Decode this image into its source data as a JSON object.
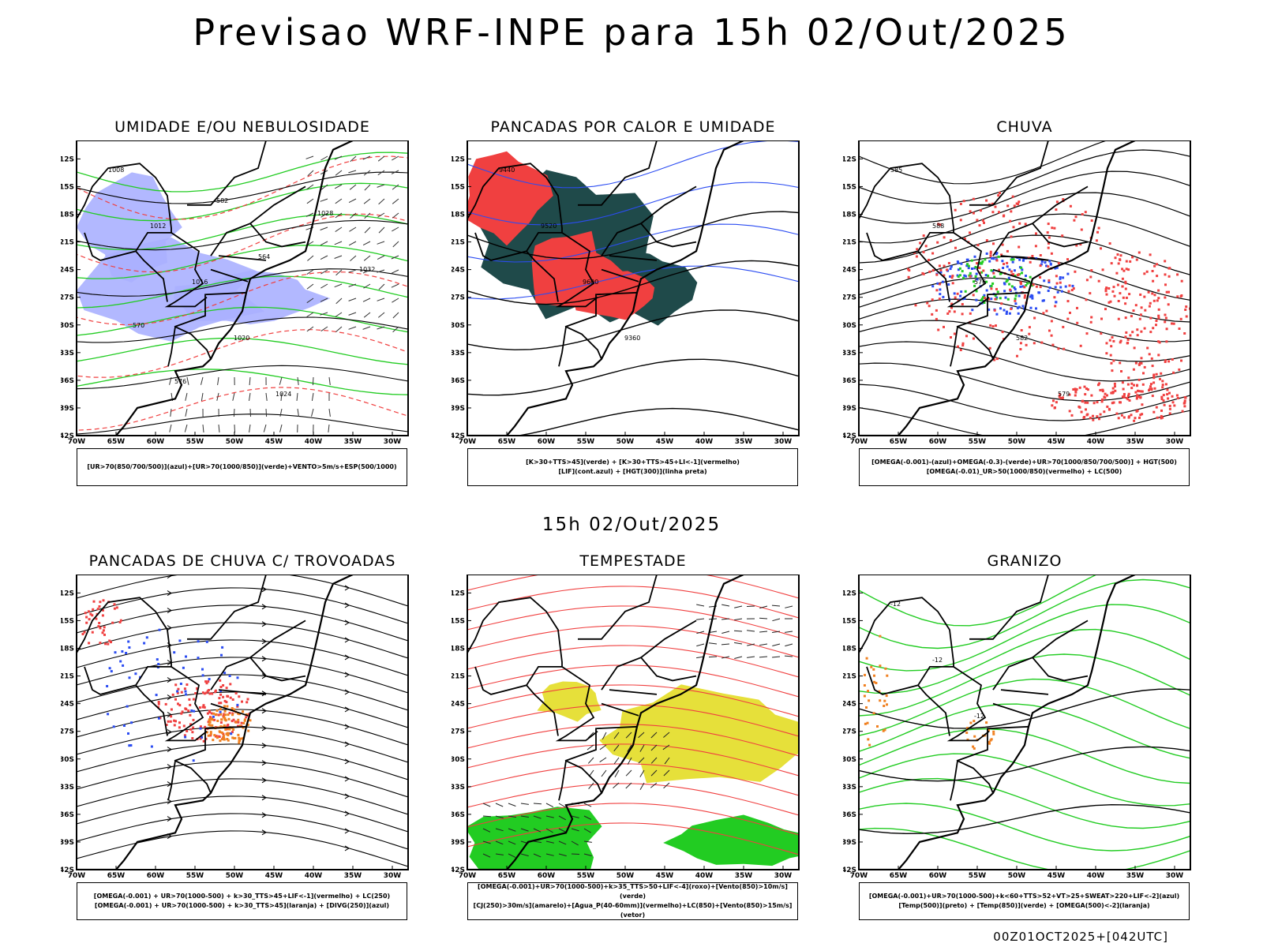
{
  "header": {
    "title": "Previsao WRF-INPE  para 15h 02/Out/2025"
  },
  "subheader": {
    "time": "15h 02/Out/2025"
  },
  "footer": {
    "run": "00Z01OCT2025+[042UTC]"
  },
  "axes": {
    "lat_labels": [
      "12S",
      "15S",
      "18S",
      "21S",
      "24S",
      "27S",
      "30S",
      "33S",
      "36S",
      "39S",
      "42S"
    ],
    "lon_labels": [
      "70W",
      "65W",
      "60W",
      "55W",
      "50W",
      "45W",
      "40W",
      "35W",
      "30W"
    ]
  },
  "colors": {
    "blue": "#2b4cf2",
    "light_blue": "#aab0ff",
    "green": "#22cc22",
    "red": "#f04040",
    "dark_teal": "#1f4a4a",
    "yellow": "#e6e03a",
    "orange": "#f08020",
    "purple": "#a040c0"
  },
  "panels": [
    {
      "title": "UMIDADE E/OU NEBULOSIDADE",
      "legend": [
        "[UR>70(850/700/500)](azul)+[UR>70(1000/850)](verde)+VENTO>5m/s+ESP(500/1000)"
      ],
      "contour_labels": [
        "1008",
        "1012",
        "1016",
        "1020",
        "1024",
        "1028",
        "1032",
        "570",
        "576",
        "582",
        "564"
      ]
    },
    {
      "title": "PANCADAS POR CALOR E UMIDADE",
      "legend": [
        "[K>30+TTS>45](verde) + [K>30+TTS>45+LI<-1](vermelho)",
        "[LIF](cont.azul) + [HGT(300)](linha preta)"
      ],
      "contour_labels": [
        "9440",
        "9520",
        "9600",
        "9360"
      ]
    },
    {
      "title": "CHUVA",
      "legend": [
        "[OMEGA(-0.001)-(azul)+OMEGA(-0.3)-(verde)+UR>70(1000/850/700/500)] + HGT(500)",
        "[OMEGA(-0.01)_UR>50(1000/850)(vermelho) + LC(500)"
      ],
      "contour_labels": [
        "585",
        "588",
        "576",
        "582",
        "579"
      ]
    },
    {
      "title": "PANCADAS DE CHUVA C/ TROVOADAS",
      "legend": [
        "[OMEGA(-0.001) + UR>70(1000-500) + k>30_TTS>45+LIF<-1](vermelho) + LC(250)",
        "[OMEGA(-0.001) + UR>70(1000-500) + k>30_TTS>45](laranja) + [DIVG(250)](azul)"
      ],
      "contour_labels": []
    },
    {
      "title": "TEMPESTADE",
      "legend": [
        "[OMEGA(-0.001)+UR>70(1000-500)+k>35_TTS>50+LIF<-4](roxo)+[Vento(850)>10m/s](verde)",
        "[CJ(250)>30m/s](amarelo)+[Agua_P(40-60mm)](vermelho)+LC(850)+[Vento(850)>15m/s](vetor)"
      ],
      "contour_labels": []
    },
    {
      "title": "GRANIZO",
      "legend": [
        "[OMEGA(-0.001)+UR>70(1000-500)+k<60+TTS>52+VT>25+SWEAT>220+LIF<-2](azul)",
        "[Temp(500)](preto) + [Temp(850)](verde) + [OMEGA(500)<-2](laranja)"
      ],
      "contour_labels": [
        "-12",
        "-12",
        "-12"
      ]
    }
  ]
}
